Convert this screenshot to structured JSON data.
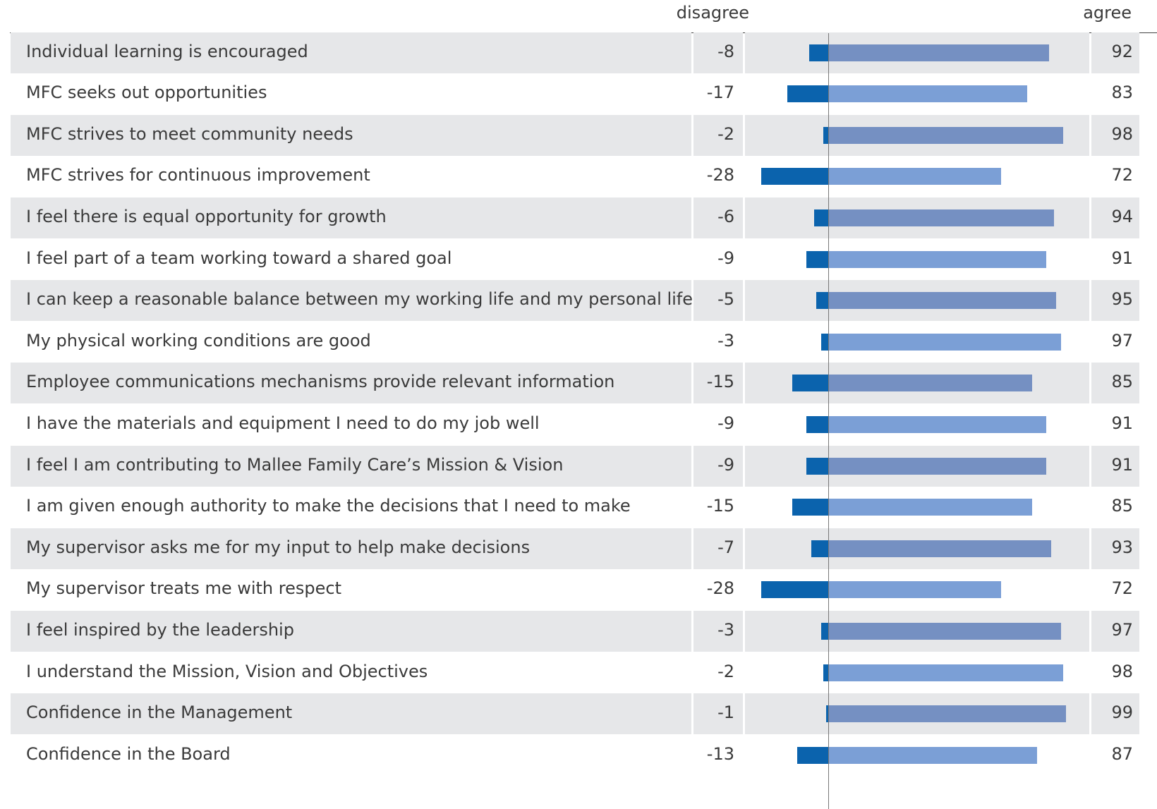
{
  "chart_data": {
    "type": "bar",
    "headers": {
      "disagree": "disagree",
      "agree": "agree"
    },
    "xlim": [
      -30,
      100
    ],
    "series": [
      {
        "name": "disagree",
        "color": "#0b63ad"
      },
      {
        "name": "agree",
        "color": "#7b9fd6"
      }
    ],
    "rows": [
      {
        "label": "Individual learning is encouraged",
        "disagree": -8,
        "agree": 92
      },
      {
        "label": "MFC seeks out opportunities",
        "disagree": -17,
        "agree": 83
      },
      {
        "label": "MFC strives to meet community needs",
        "disagree": -2,
        "agree": 98
      },
      {
        "label": "MFC strives for continuous improvement",
        "disagree": -28,
        "agree": 72
      },
      {
        "label": "I feel there is equal opportunity for growth",
        "disagree": -6,
        "agree": 94
      },
      {
        "label": "I feel part of a team working toward a shared goal",
        "disagree": -9,
        "agree": 91
      },
      {
        "label": "I can keep a reasonable balance between my working life and my personal life",
        "disagree": -5,
        "agree": 95
      },
      {
        "label": "My physical working conditions are good",
        "disagree": -3,
        "agree": 97
      },
      {
        "label": "Employee communications mechanisms provide relevant information",
        "disagree": -15,
        "agree": 85
      },
      {
        "label": "I have the materials and equipment I need to do my job well",
        "disagree": -9,
        "agree": 91
      },
      {
        "label": "I feel I am contributing to Mallee Family Care’s Mission & Vision",
        "disagree": -9,
        "agree": 91
      },
      {
        "label": "I am given enough authority to make the decisions that I need to make",
        "disagree": -15,
        "agree": 85
      },
      {
        "label": "My supervisor asks me for my input to help make decisions",
        "disagree": -7,
        "agree": 93
      },
      {
        "label": "My supervisor treats me with respect",
        "disagree": -28,
        "agree": 72
      },
      {
        "label": "I feel inspired by the leadership",
        "disagree": -3,
        "agree": 97
      },
      {
        "label": "I understand the Mission, Vision and Objectives",
        "disagree": -2,
        "agree": 98
      },
      {
        "label": "Confidence in the Management",
        "disagree": -1,
        "agree": 99
      },
      {
        "label": "Confidence in the Board",
        "disagree": -13,
        "agree": 87
      }
    ]
  }
}
